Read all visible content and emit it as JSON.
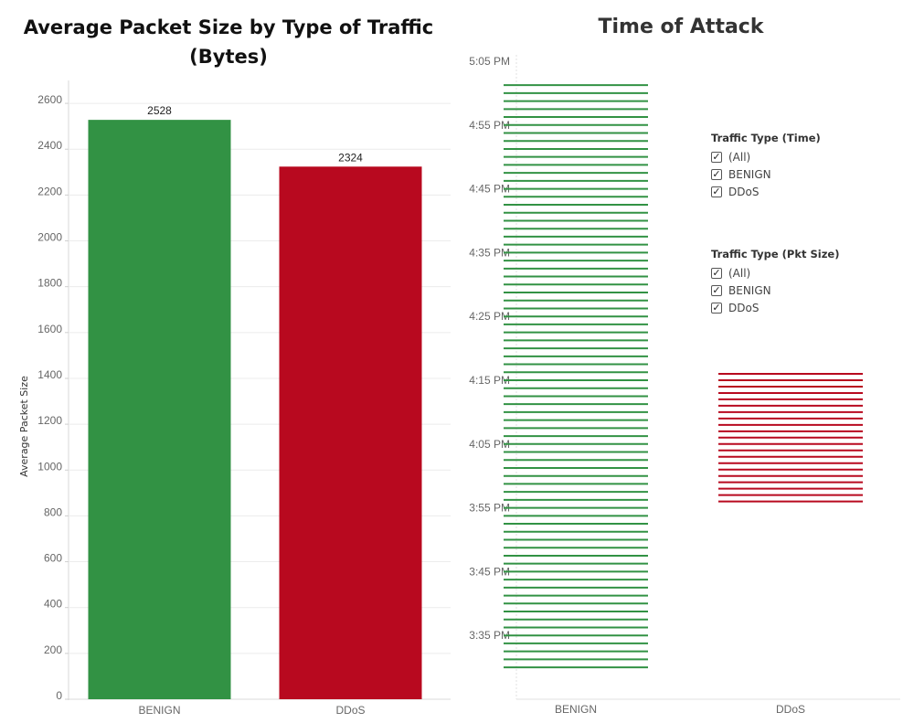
{
  "bar_chart": {
    "title": "Average Packet Size by Type of Traffic (Bytes)",
    "ylabel": "Average Packet Size"
  },
  "time_chart": {
    "title": "Time of Attack"
  },
  "filters": [
    {
      "title": "Traffic Type (Time)",
      "items": [
        {
          "label": "(All)",
          "checked": true
        },
        {
          "label": "BENIGN",
          "checked": true
        },
        {
          "label": "DDoS",
          "checked": true
        }
      ]
    },
    {
      "title": "Traffic Type (Pkt Size)",
      "items": [
        {
          "label": "(All)",
          "checked": true
        },
        {
          "label": "BENIGN",
          "checked": true
        },
        {
          "label": "DDoS",
          "checked": true
        }
      ]
    }
  ],
  "colors": {
    "benign": "#329244",
    "ddos": "#b8091f"
  },
  "chart_data": [
    {
      "type": "bar",
      "title": "Average Packet Size by Type of Traffic (Bytes)",
      "ylabel": "Average Packet Size",
      "xlabel": "",
      "categories": [
        "BENIGN",
        "DDoS"
      ],
      "values": [
        2528,
        2324
      ],
      "data_labels": [
        "2528",
        "2324"
      ],
      "ylim": [
        0,
        2700
      ],
      "yticks": [
        0,
        200,
        400,
        600,
        800,
        1000,
        1200,
        1400,
        1600,
        1800,
        2000,
        2200,
        2400,
        2600
      ],
      "grid": true,
      "legend": "none"
    },
    {
      "type": "line",
      "title": "Time of Attack",
      "categories": [
        "BENIGN",
        "DDoS"
      ],
      "y_axis": "time of day",
      "ytick_labels": [
        "3:35 PM",
        "3:45 PM",
        "3:55 PM",
        "4:05 PM",
        "4:15 PM",
        "4:25 PM",
        "4:35 PM",
        "4:45 PM",
        "4:55 PM",
        "5:05 PM"
      ],
      "ytick_values": [
        "15:35",
        "15:45",
        "15:55",
        "16:05",
        "16:15",
        "16:25",
        "16:35",
        "16:45",
        "16:55",
        "17:05"
      ],
      "ylim": [
        "15:25",
        "17:06"
      ],
      "series": [
        {
          "category": "BENIGN",
          "start": "15:30",
          "end": "17:02",
          "interval_minutes": 1.25
        },
        {
          "category": "DDoS",
          "start": "15:56",
          "end": "16:16",
          "interval_minutes": 1.0
        }
      ],
      "legend": "filters top-right"
    }
  ]
}
